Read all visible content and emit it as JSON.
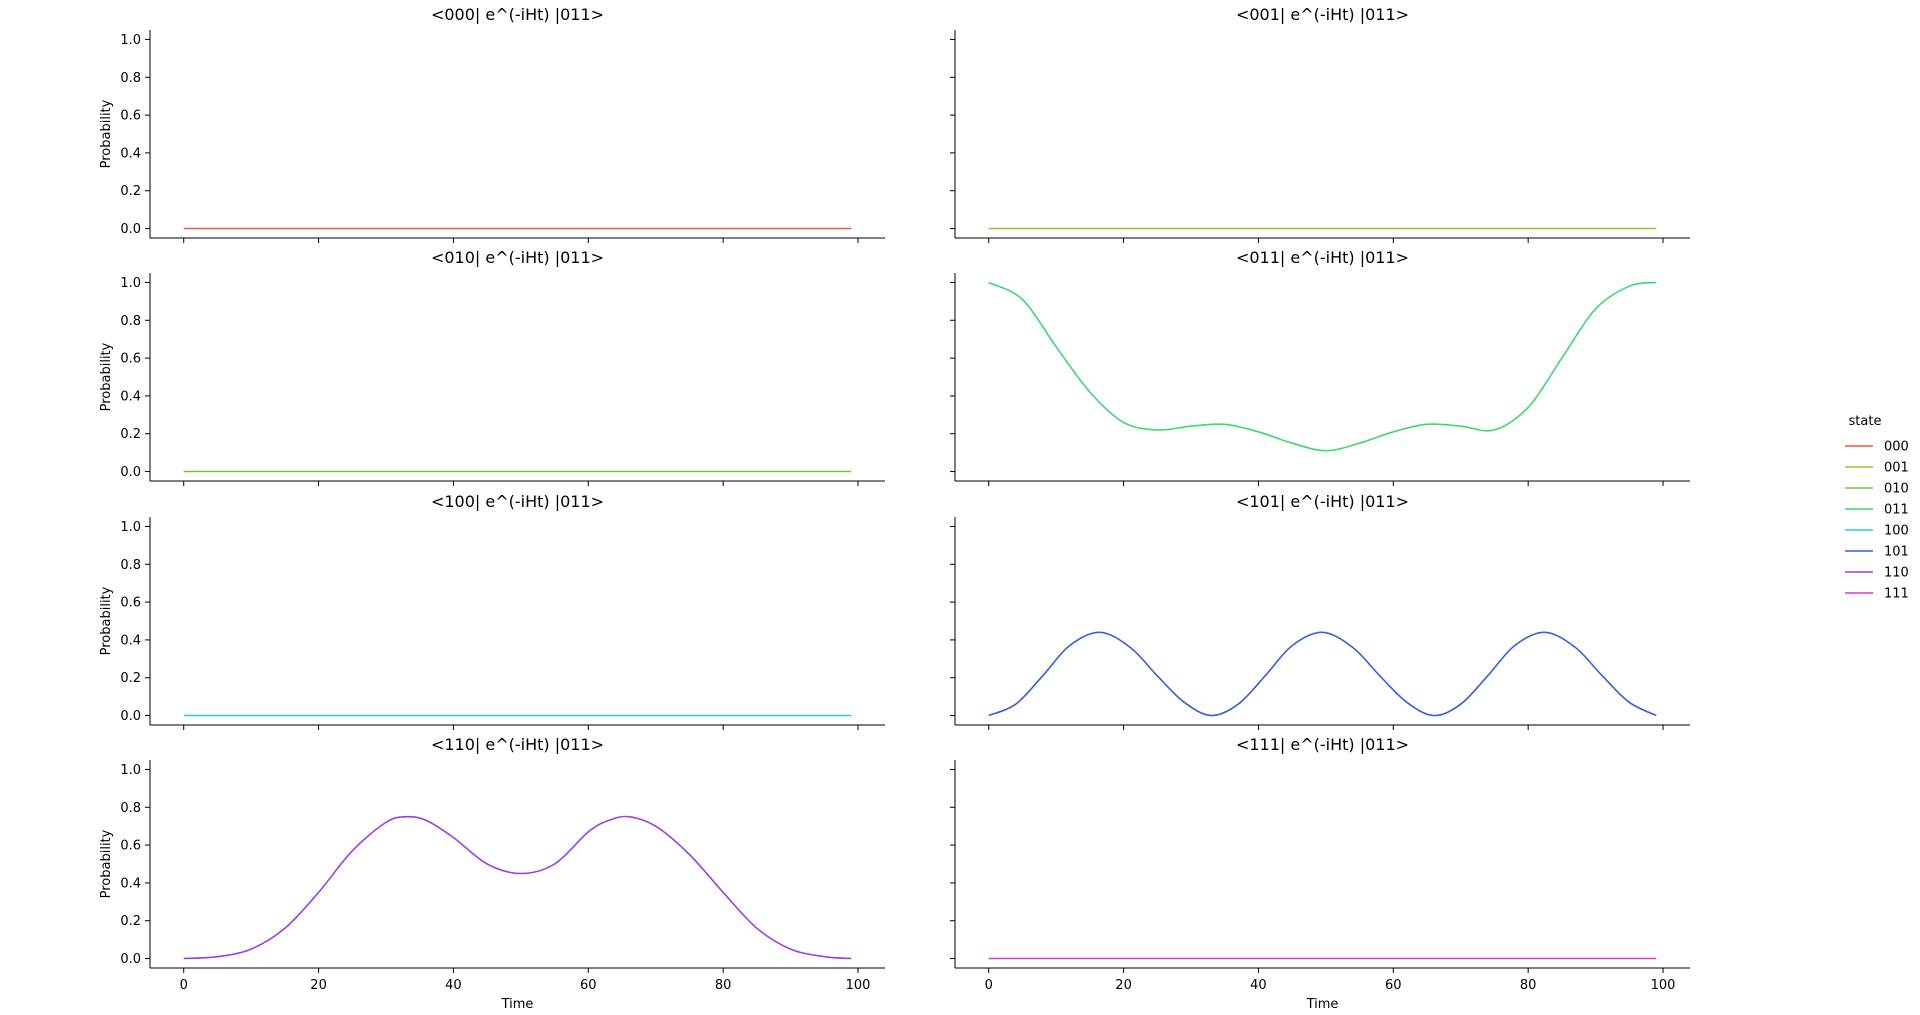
{
  "chart_data": {
    "type": "line",
    "layout": "facet-grid 4x2",
    "xlabel": "Time",
    "ylabel": "Probability",
    "xlim": [
      -5,
      104
    ],
    "ylim": [
      -0.05,
      1.05
    ],
    "xticks": [
      "0",
      "20",
      "40",
      "60",
      "80",
      "100"
    ],
    "yticks": [
      "0.0",
      "0.2",
      "0.4",
      "0.6",
      "0.8",
      "1.0"
    ],
    "grid": false,
    "legend": {
      "title": "state",
      "placement": "right",
      "entries": [
        {
          "label": "000",
          "color": "#e8584a"
        },
        {
          "label": "001",
          "color": "#c4b22c"
        },
        {
          "label": "010",
          "color": "#7bc43a"
        },
        {
          "label": "011",
          "color": "#3fd675"
        },
        {
          "label": "100",
          "color": "#34cccc"
        },
        {
          "label": "101",
          "color": "#3a5fd4"
        },
        {
          "label": "110",
          "color": "#9a42dc"
        },
        {
          "label": "111",
          "color": "#d23fc6"
        }
      ]
    },
    "panels": [
      {
        "title": "<000| e^(-iHt) |011>",
        "state": "000",
        "color": "#e8584a",
        "x": [
          0,
          99
        ],
        "y": [
          0.0,
          0.0
        ]
      },
      {
        "title": "<001| e^(-iHt) |011>",
        "state": "001",
        "color": "#c4b22c",
        "x": [
          0,
          99
        ],
        "y": [
          0.0,
          0.0
        ]
      },
      {
        "title": "<010| e^(-iHt) |011>",
        "state": "010",
        "color": "#7bc43a",
        "x": [
          0,
          99
        ],
        "y": [
          0.0,
          0.0
        ]
      },
      {
        "title": "<011| e^(-iHt) |011>",
        "state": "011",
        "color": "#3fd675",
        "x": [
          0,
          5,
          10,
          15,
          20,
          25,
          30,
          35,
          40,
          45,
          50,
          55,
          60,
          65,
          70,
          75,
          80,
          85,
          90,
          95,
          99
        ],
        "y": [
          1.0,
          0.91,
          0.66,
          0.42,
          0.26,
          0.22,
          0.24,
          0.25,
          0.21,
          0.15,
          0.11,
          0.15,
          0.21,
          0.25,
          0.24,
          0.22,
          0.34,
          0.6,
          0.86,
          0.98,
          1.0
        ]
      },
      {
        "title": "<100| e^(-iHt) |011>",
        "state": "100",
        "color": "#34cccc",
        "x": [
          0,
          99
        ],
        "y": [
          0.0,
          0.0
        ]
      },
      {
        "title": "<101| e^(-iHt) |011>",
        "state": "101",
        "color": "#3a5fd4",
        "x": [
          0,
          4,
          8,
          12,
          16.5,
          21,
          25,
          29,
          33,
          37,
          41,
          45,
          49.5,
          54,
          58,
          62,
          66,
          70,
          74,
          78,
          82.5,
          87,
          91,
          95,
          99
        ],
        "y": [
          0.0,
          0.06,
          0.21,
          0.37,
          0.44,
          0.36,
          0.21,
          0.07,
          0.0,
          0.06,
          0.21,
          0.37,
          0.44,
          0.36,
          0.21,
          0.07,
          0.0,
          0.06,
          0.21,
          0.37,
          0.44,
          0.36,
          0.21,
          0.07,
          0.0
        ]
      },
      {
        "title": "<110| e^(-iHt) |011>",
        "state": "110",
        "color": "#9a42dc",
        "x": [
          0,
          5,
          10,
          15,
          20,
          25,
          30,
          33,
          36,
          40,
          45,
          50,
          55,
          60,
          63,
          66,
          70,
          75,
          80,
          85,
          90,
          95,
          99
        ],
        "y": [
          0.0,
          0.01,
          0.05,
          0.16,
          0.35,
          0.57,
          0.72,
          0.75,
          0.73,
          0.64,
          0.5,
          0.45,
          0.5,
          0.67,
          0.73,
          0.75,
          0.7,
          0.55,
          0.35,
          0.16,
          0.05,
          0.01,
          0.0
        ]
      },
      {
        "title": "<111| e^(-iHt) |011>",
        "state": "111",
        "color": "#d23fc6",
        "x": [
          0,
          99
        ],
        "y": [
          0.0,
          0.0
        ]
      }
    ]
  }
}
